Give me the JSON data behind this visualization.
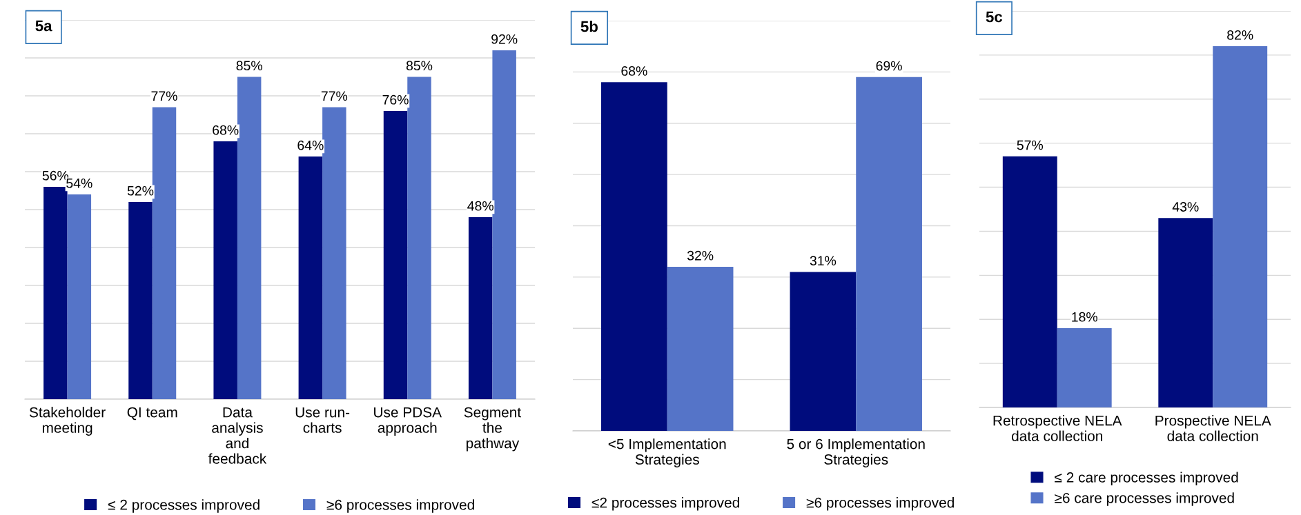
{
  "chart_data": [
    {
      "type": "bar",
      "title": "5a",
      "categories": [
        "Stakeholder\nmeeting",
        "QI team",
        "Data\nanalysis\nand\nfeedback",
        "Use run-\ncharts",
        "Use PDSA\napproach",
        "Segment\nthe\npathway"
      ],
      "ylim": [
        0,
        100
      ],
      "yticks": [
        {
          "value": 0,
          "label": null
        },
        {
          "value": 10,
          "label": null
        },
        {
          "value": 20,
          "label": null
        },
        {
          "value": 30,
          "label": null
        },
        {
          "value": 40,
          "label": null
        },
        {
          "value": 50,
          "label": null
        },
        {
          "value": 60,
          "label": null
        },
        {
          "value": 70,
          "label": null
        },
        {
          "value": 80,
          "label": null
        },
        {
          "value": 90,
          "label": null
        },
        {
          "value": 100,
          "label": null
        }
      ],
      "tick_labels": "x",
      "grid": "y",
      "legend": "bottom",
      "series": [
        {
          "name": "≤ 2 processes improved",
          "color": "#000c7d",
          "values": [
            56,
            52,
            68,
            64,
            76,
            48
          ],
          "value_labels": [
            "56%",
            "52%",
            "68%",
            "64%",
            "76%",
            "48%"
          ]
        },
        {
          "name": "≥6 processes improved",
          "color": "#5574c8",
          "values": [
            54,
            77,
            85,
            77,
            85,
            92
          ],
          "value_labels": [
            "54%",
            "77%",
            "85%",
            "77%",
            "85%",
            "92%"
          ]
        }
      ]
    },
    {
      "type": "bar",
      "title": "5b",
      "categories": [
        "<5 Implementation\nStrategies",
        "5 or 6 Implementation\nStrategies"
      ],
      "ylim": [
        0,
        80
      ],
      "yticks": [
        {
          "value": 0,
          "label": null
        },
        {
          "value": 10,
          "label": null
        },
        {
          "value": 20,
          "label": null
        },
        {
          "value": 30,
          "label": null
        },
        {
          "value": 40,
          "label": null
        },
        {
          "value": 50,
          "label": null
        },
        {
          "value": 60,
          "label": null
        },
        {
          "value": 70,
          "label": null
        },
        {
          "value": 80,
          "label": null
        }
      ],
      "tick_labels": "x",
      "grid": "y",
      "legend": "bottom",
      "series": [
        {
          "name": "≤2 processes improved",
          "color": "#000c7d",
          "values": [
            68,
            31
          ],
          "value_labels": [
            "68%",
            "31%"
          ]
        },
        {
          "name": "≥6 processes improved",
          "color": "#5574c8",
          "values": [
            32,
            69
          ],
          "value_labels": [
            "32%",
            "69%"
          ]
        }
      ]
    },
    {
      "type": "bar",
      "title": "5c",
      "categories": [
        "Retrospective NELA\ndata collection",
        "Prospective NELA\ndata collection"
      ],
      "ylim": [
        0,
        90
      ],
      "yticks": [
        {
          "value": 0,
          "label": null
        },
        {
          "value": 10,
          "label": null
        },
        {
          "value": 20,
          "label": null
        },
        {
          "value": 30,
          "label": null
        },
        {
          "value": 40,
          "label": null
        },
        {
          "value": 50,
          "label": null
        },
        {
          "value": 60,
          "label": null
        },
        {
          "value": 70,
          "label": null
        },
        {
          "value": 80,
          "label": null
        },
        {
          "value": 90,
          "label": null
        }
      ],
      "tick_labels": "x",
      "grid": "y",
      "legend": "bottom",
      "series": [
        {
          "name": "≤ 2 care processes improved",
          "color": "#000c7d",
          "values": [
            57,
            43
          ],
          "value_labels": [
            "57%",
            "43%"
          ]
        },
        {
          "name": "≥6 care processes improved",
          "color": "#5574c8",
          "values": [
            18,
            82
          ],
          "value_labels": [
            "18%",
            "82%"
          ]
        }
      ]
    }
  ]
}
